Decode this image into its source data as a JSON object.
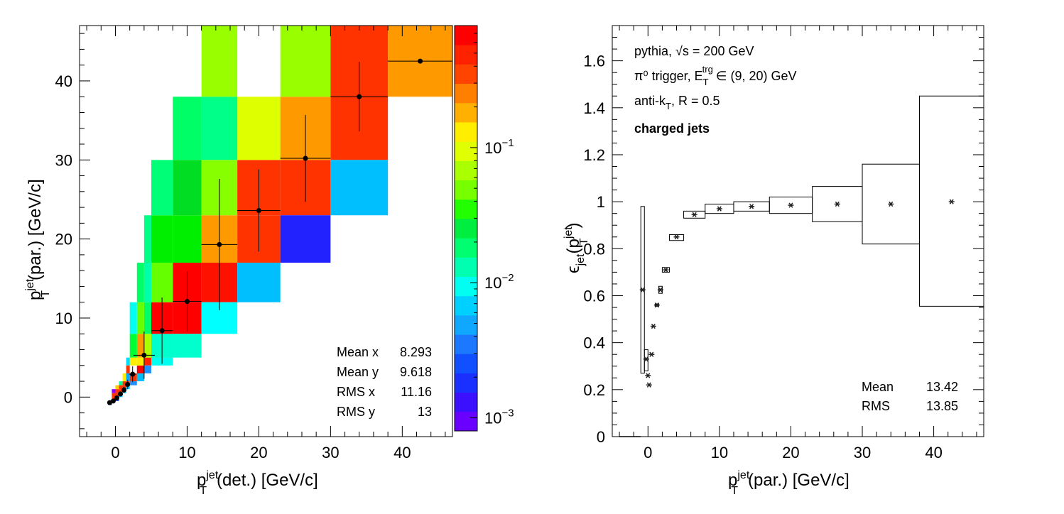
{
  "chart_data": [
    {
      "type": "heatmap",
      "xlabel_main": "p",
      "xlabel_sup": "jet",
      "xlabel_sub": "T",
      "xlabel_rest": "(det.) [GeV/c]",
      "ylabel_main": "p",
      "ylabel_sup": "jet",
      "ylabel_sub": "T",
      "ylabel_rest": "(par.) [GeV/c]",
      "xlim": [
        -5,
        47
      ],
      "ylim": [
        -5,
        47
      ],
      "xticks": [
        "0",
        "10",
        "20",
        "30",
        "40"
      ],
      "yticks": [
        "0",
        "10",
        "20",
        "30",
        "40"
      ],
      "colorbar": {
        "scale": "log",
        "range": [
          0.0008,
          0.8
        ],
        "ticks": [
          "10",
          "10",
          "10"
        ],
        "tick_exps": [
          "−3",
          "−2",
          "−1"
        ],
        "tick_values": [
          0.001,
          0.01,
          0.1
        ]
      },
      "x_bin_edges": [
        -1,
        -0.5,
        0,
        0.5,
        1,
        1.5,
        2,
        3,
        4,
        5,
        8,
        12,
        17,
        23,
        30,
        38,
        47
      ],
      "y_bin_edges": [
        -1,
        -0.5,
        0,
        0.5,
        1,
        1.5,
        2,
        3,
        4,
        5,
        8,
        12,
        17,
        23,
        30,
        38,
        47
      ],
      "cells": [
        {
          "x": 0,
          "y": 0,
          "color": "#1a4dff"
        },
        {
          "x": 1,
          "y": 1,
          "color": "#ff3300"
        },
        {
          "x": 2,
          "y": 2,
          "color": "#ff3300"
        },
        {
          "x": 2,
          "y": 1,
          "color": "#1a4dff"
        },
        {
          "x": 3,
          "y": 3,
          "color": "#ff3300"
        },
        {
          "x": 3,
          "y": 2,
          "color": "#00c8ff"
        },
        {
          "x": 4,
          "y": 4,
          "color": "#ff3300"
        },
        {
          "x": 4,
          "y": 3,
          "color": "#00c8ff"
        },
        {
          "x": 5,
          "y": 5,
          "color": "#ff3300"
        },
        {
          "x": 5,
          "y": 4,
          "color": "#00c8ff"
        },
        {
          "x": 6,
          "y": 6,
          "color": "#ff3300"
        },
        {
          "x": 6,
          "y": 5,
          "color": "#1e90ff"
        },
        {
          "x": 7,
          "y": 7,
          "color": "#ff0000"
        },
        {
          "x": 7,
          "y": 6,
          "color": "#00bfff"
        },
        {
          "x": 8,
          "y": 8,
          "color": "#ff2200"
        },
        {
          "x": 8,
          "y": 7,
          "color": "#1e90ff"
        },
        {
          "x": 9,
          "y": 9,
          "color": "#ff0000"
        },
        {
          "x": 9,
          "y": 8,
          "color": "#00ffee"
        },
        {
          "x": 10,
          "y": 10,
          "color": "#ff0000"
        },
        {
          "x": 10,
          "y": 9,
          "color": "#00ffcc"
        },
        {
          "x": 11,
          "y": 11,
          "color": "#ff1100"
        },
        {
          "x": 11,
          "y": 10,
          "color": "#00ffff"
        },
        {
          "x": 12,
          "y": 12,
          "color": "#ff3300"
        },
        {
          "x": 12,
          "y": 11,
          "color": "#00bfff"
        },
        {
          "x": 13,
          "y": 13,
          "color": "#ff3300"
        },
        {
          "x": 13,
          "y": 12,
          "color": "#2222ff"
        },
        {
          "x": 14,
          "y": 14,
          "color": "#ff3300"
        },
        {
          "x": 14,
          "y": 13,
          "color": "#00bfff"
        },
        {
          "x": 15,
          "y": 15,
          "color": "#ff9900"
        }
      ],
      "profile_points": [
        {
          "x": -0.8,
          "y": -0.7,
          "ex": 0.2,
          "ey": 0.2
        },
        {
          "x": -0.3,
          "y": -0.5,
          "ex": 0.2,
          "ey": 0.2
        },
        {
          "x": 0.2,
          "y": -0.1,
          "ex": 0.2,
          "ey": 0.2
        },
        {
          "x": 0.7,
          "y": 0.4,
          "ex": 0.2,
          "ey": 0.3
        },
        {
          "x": 1.2,
          "y": 0.9,
          "ex": 0.2,
          "ey": 0.4
        },
        {
          "x": 1.7,
          "y": 1.6,
          "ex": 0.3,
          "ey": 0.6
        },
        {
          "x": 2.4,
          "y": 2.9,
          "ex": 0.5,
          "ey": 1.0
        },
        {
          "x": 4.0,
          "y": 5.3,
          "ex": 1.5,
          "ey": 3.0
        },
        {
          "x": 6.5,
          "y": 8.4,
          "ex": 1.5,
          "ey": 4.2
        },
        {
          "x": 10,
          "y": 12.1,
          "ex": 2.0,
          "ey": 3.8
        },
        {
          "x": 14.5,
          "y": 19.3,
          "ex": 2.5,
          "ey": 8.3
        },
        {
          "x": 20,
          "y": 23.6,
          "ex": 3.0,
          "ey": 5.2
        },
        {
          "x": 26.5,
          "y": 30.2,
          "ex": 3.5,
          "ey": 5.5
        },
        {
          "x": 34,
          "y": 38,
          "ex": 4.0,
          "ey": 4.4
        },
        {
          "x": 42.5,
          "y": 42.5,
          "ex": 4.5,
          "ey": 0
        }
      ],
      "stats": [
        {
          "label": "Mean x",
          "value": "8.293"
        },
        {
          "label": "Mean y",
          "value": "9.618"
        },
        {
          "label": "RMS x",
          "value": "11.16"
        },
        {
          "label": "RMS y",
          "value": "13"
        }
      ]
    },
    {
      "type": "scatter",
      "xlabel_main": "p",
      "xlabel_sup": "jet",
      "xlabel_sub": "T",
      "xlabel_rest": "(par.) [GeV/c]",
      "ylabel_main": "ϵ",
      "ylabel_sub": "jet",
      "ylabel_rest": "(p",
      "ylabel_sub2": "T",
      "ylabel_sup2": "jet",
      "ylabel_end": ")",
      "xlim": [
        -5,
        47
      ],
      "ylim": [
        0,
        1.75
      ],
      "xticks": [
        "0",
        "10",
        "20",
        "30",
        "40"
      ],
      "yticks": [
        "0",
        "0.2",
        "0.4",
        "0.6",
        "0.8",
        "1",
        "1.2",
        "1.4",
        "1.6"
      ],
      "legend_lines": [
        "pythia, √s = 200 GeV",
        "π⁰ trigger, E",
        "anti-k",
        "charged jets"
      ],
      "legend_line2_sub": "T",
      "legend_line2_sup": "trg",
      "legend_line2_rest": "∈ (9, 20) GeV",
      "legend_line3_sub": "T",
      "legend_line3_rest": ", R = 0.5",
      "points": [
        {
          "x": -0.75,
          "y": 0.625,
          "xlo": -1,
          "xhi": -0.5,
          "ylo": 0.27,
          "yhi": 0.98
        },
        {
          "x": -0.25,
          "y": 0.33,
          "xlo": -0.5,
          "xhi": 0,
          "ylo": 0.28,
          "yhi": 0.37
        },
        {
          "x": 0,
          "y": 0.26,
          "xlo": null,
          "xhi": null,
          "ylo": null,
          "yhi": null
        },
        {
          "x": 0.15,
          "y": 0.22,
          "xlo": null,
          "xhi": null,
          "ylo": null,
          "yhi": null
        },
        {
          "x": 0.5,
          "y": 0.35,
          "xlo": null,
          "xhi": null,
          "ylo": null,
          "yhi": null
        },
        {
          "x": 0.75,
          "y": 0.47,
          "xlo": null,
          "xhi": null,
          "ylo": null,
          "yhi": null
        },
        {
          "x": 1.25,
          "y": 0.56,
          "xlo": 1,
          "xhi": 1.5,
          "ylo": 0.555,
          "yhi": 0.565
        },
        {
          "x": 1.75,
          "y": 0.625,
          "xlo": 1.5,
          "xhi": 2,
          "ylo": 0.61,
          "yhi": 0.64
        },
        {
          "x": 2.5,
          "y": 0.71,
          "xlo": 2,
          "xhi": 3,
          "ylo": 0.7,
          "yhi": 0.72
        },
        {
          "x": 4,
          "y": 0.85,
          "xlo": 3,
          "xhi": 5,
          "ylo": 0.835,
          "yhi": 0.86
        },
        {
          "x": 6.5,
          "y": 0.945,
          "xlo": 5,
          "xhi": 8,
          "ylo": 0.93,
          "yhi": 0.96
        },
        {
          "x": 10,
          "y": 0.97,
          "xlo": 8,
          "xhi": 12,
          "ylo": 0.95,
          "yhi": 0.99
        },
        {
          "x": 14.5,
          "y": 0.98,
          "xlo": 12,
          "xhi": 17,
          "ylo": 0.96,
          "yhi": 1.0
        },
        {
          "x": 20,
          "y": 0.985,
          "xlo": 17,
          "xhi": 23,
          "ylo": 0.95,
          "yhi": 1.02
        },
        {
          "x": 26.5,
          "y": 0.99,
          "xlo": 23,
          "xhi": 30,
          "ylo": 0.915,
          "yhi": 1.065
        },
        {
          "x": 34,
          "y": 0.99,
          "xlo": 30,
          "xhi": 38,
          "ylo": 0.82,
          "yhi": 1.16
        },
        {
          "x": 42.5,
          "y": 1.0,
          "xlo": 38,
          "xhi": 47,
          "ylo": 0.555,
          "yhi": 1.45
        }
      ],
      "baseline": {
        "x0": -4,
        "x1": -1,
        "y": 0
      },
      "stats": [
        {
          "label": "Mean",
          "value": "13.42"
        },
        {
          "label": "RMS",
          "value": "13.85"
        }
      ]
    }
  ]
}
